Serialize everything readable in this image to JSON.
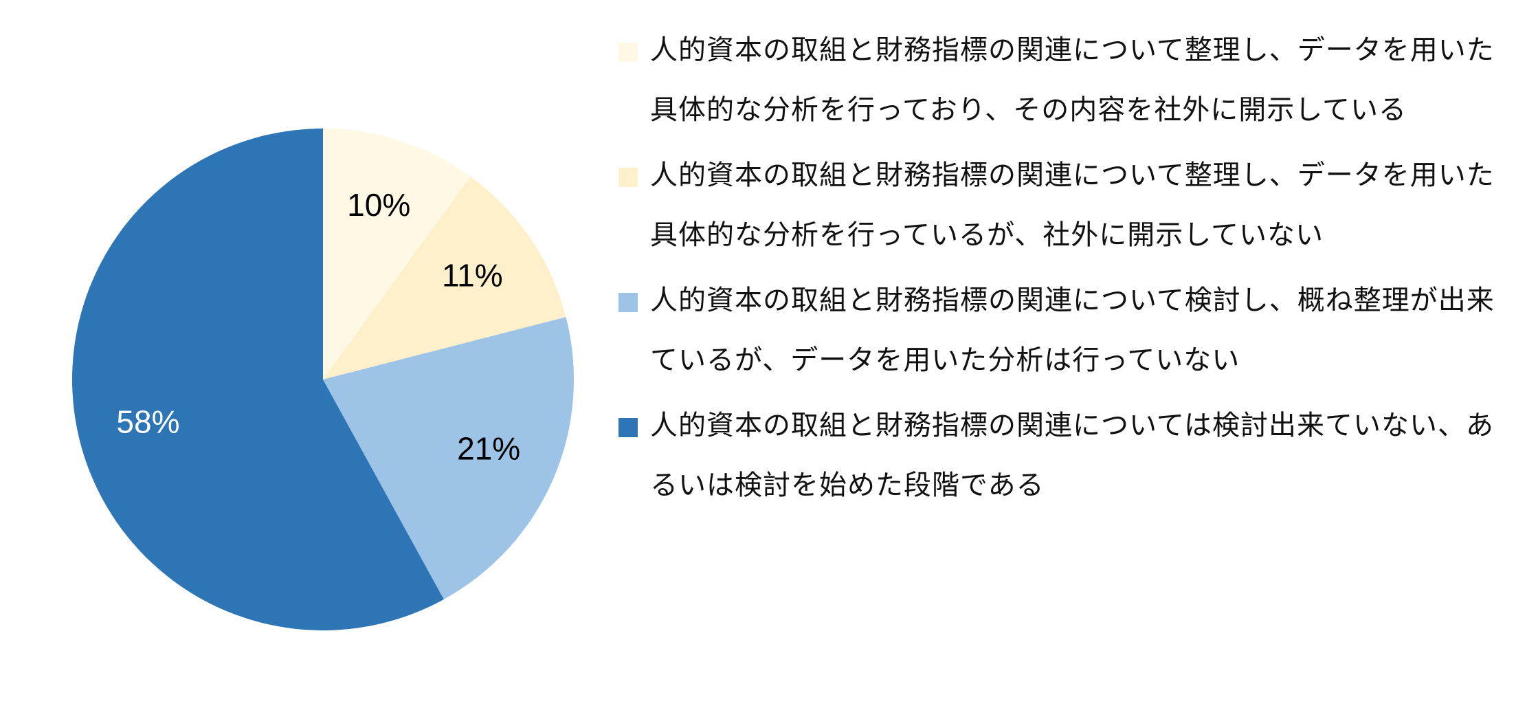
{
  "chart_data": {
    "type": "pie",
    "start_angle": "12 o'clock, clockwise",
    "slices": [
      {
        "label": "人的資本の取組と財務指標の関連について整理し、データを用いた具体的な分析を行っており、その内容を社外に開示している",
        "value": 10,
        "display": "10%",
        "color": "#FFF8E5",
        "label_color": "#000000"
      },
      {
        "label": "人的資本の取組と財務指標の関連について整理し、データを用いた具体的な分析を行っているが、社外に開示していない",
        "value": 11,
        "display": "11%",
        "color": "#FFF0CC",
        "label_color": "#000000"
      },
      {
        "label": "人的資本の取組と財務指標の関連について検討し、概ね整理が出来ているが、データを用いた分析は行っていない",
        "value": 21,
        "display": "21%",
        "color": "#9DC3E6",
        "label_color": "#000000"
      },
      {
        "label": "人的資本の取組と財務指標の関連については検討出来ていない、あるいは検討を始めた段階である",
        "value": 58,
        "display": "58%",
        "color": "#2E75B6",
        "label_color": "#FFFFFF"
      }
    ],
    "legend_position": "right"
  }
}
